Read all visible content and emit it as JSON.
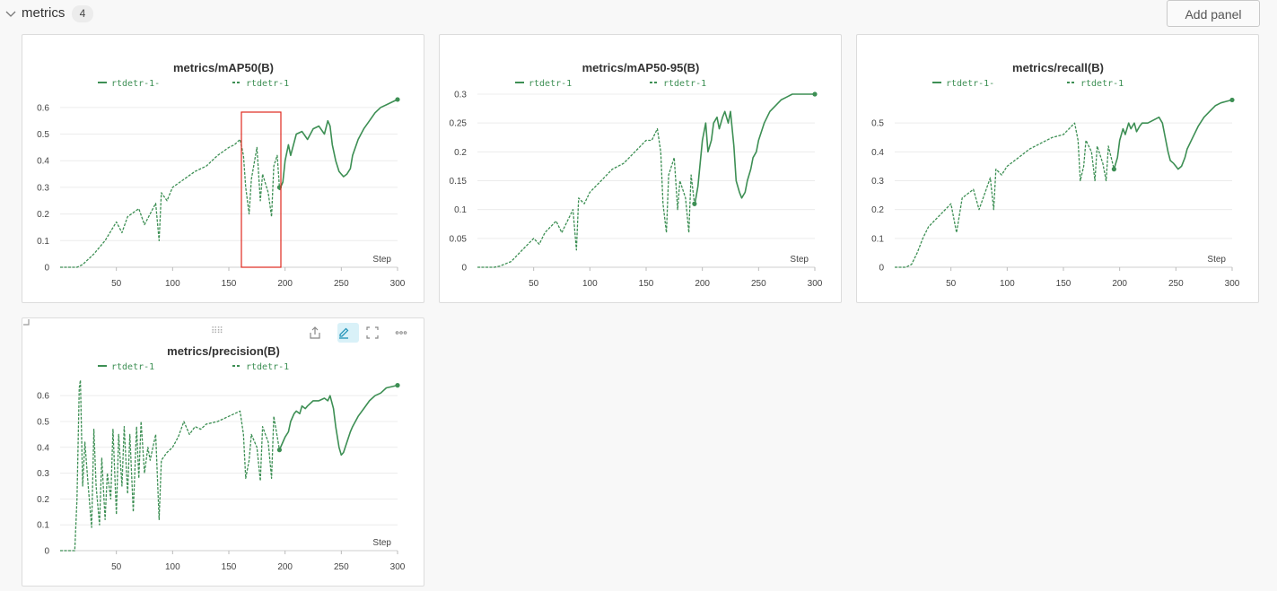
{
  "section": {
    "title": "metrics",
    "count": "4",
    "add_panel_label": "Add panel"
  },
  "colors": {
    "series": "#3d8f54",
    "highlight": "#e0291f",
    "grid": "#ececec"
  },
  "toolbar_icons": [
    "drag-handle-icon",
    "share-icon",
    "edit-icon",
    "fullscreen-icon",
    "more-icon"
  ],
  "chart_data": [
    {
      "type": "line",
      "title": "metrics/mAP50(B)",
      "xlabel": "Step",
      "xticks": [
        50,
        100,
        150,
        200,
        250,
        300
      ],
      "yticks": [
        0,
        0.1,
        0.2,
        0.3,
        0.4,
        0.5,
        0.6
      ],
      "ylim": [
        0,
        0.65
      ],
      "xlim": [
        0,
        300
      ],
      "legend": [
        "rtdetr-1-",
        "rtdetr-1"
      ],
      "series": [
        {
          "name": "rtdetr-1",
          "style": "dashed",
          "x": [
            0,
            15,
            20,
            30,
            40,
            50,
            55,
            60,
            70,
            75,
            85,
            88,
            90,
            95,
            100,
            110,
            120,
            130,
            140,
            150,
            155,
            160,
            163,
            165,
            168,
            170,
            175,
            178,
            180,
            185,
            188,
            190,
            193,
            195
          ],
          "y": [
            0,
            0,
            0.01,
            0.05,
            0.1,
            0.17,
            0.13,
            0.19,
            0.22,
            0.16,
            0.24,
            0.1,
            0.28,
            0.25,
            0.3,
            0.33,
            0.36,
            0.38,
            0.42,
            0.45,
            0.46,
            0.48,
            0.42,
            0.3,
            0.2,
            0.33,
            0.45,
            0.25,
            0.35,
            0.28,
            0.19,
            0.38,
            0.42,
            0.3
          ]
        },
        {
          "name": "rtdetr-1-",
          "style": "solid",
          "x": [
            195,
            198,
            200,
            203,
            205,
            210,
            215,
            220,
            225,
            230,
            235,
            238,
            240,
            242,
            245,
            248,
            250,
            252,
            255,
            258,
            260,
            265,
            270,
            275,
            280,
            285,
            290,
            295,
            300
          ],
          "y": [
            0.29,
            0.32,
            0.4,
            0.46,
            0.42,
            0.5,
            0.51,
            0.48,
            0.52,
            0.53,
            0.5,
            0.55,
            0.53,
            0.46,
            0.4,
            0.36,
            0.35,
            0.34,
            0.35,
            0.37,
            0.42,
            0.48,
            0.52,
            0.55,
            0.58,
            0.6,
            0.61,
            0.62,
            0.63
          ]
        }
      ]
    },
    {
      "type": "line",
      "title": "metrics/mAP50-95(B)",
      "xlabel": "Step",
      "xticks": [
        50,
        100,
        150,
        200,
        250,
        300
      ],
      "yticks": [
        0,
        0.05,
        0.1,
        0.15,
        0.2,
        0.25,
        0.3
      ],
      "ylim": [
        0,
        0.3
      ],
      "xlim": [
        0,
        300
      ],
      "legend": [
        "rtdetr-1",
        "rtdetr-1"
      ],
      "series": [
        {
          "name": "rtdetr-1",
          "style": "dashed",
          "x": [
            0,
            15,
            20,
            30,
            40,
            50,
            55,
            60,
            70,
            75,
            85,
            88,
            90,
            95,
            100,
            110,
            120,
            130,
            140,
            150,
            155,
            160,
            163,
            165,
            168,
            170,
            175,
            178,
            180,
            185,
            188,
            190,
            193
          ],
          "y": [
            0,
            0,
            0.002,
            0.01,
            0.03,
            0.05,
            0.04,
            0.06,
            0.08,
            0.06,
            0.1,
            0.03,
            0.12,
            0.11,
            0.13,
            0.15,
            0.17,
            0.18,
            0.2,
            0.22,
            0.22,
            0.24,
            0.2,
            0.11,
            0.06,
            0.16,
            0.19,
            0.1,
            0.15,
            0.12,
            0.06,
            0.16,
            0.11
          ]
        },
        {
          "name": "rtdetr-1",
          "style": "solid",
          "x": [
            193,
            196,
            200,
            203,
            205,
            208,
            210,
            213,
            215,
            218,
            220,
            223,
            225,
            228,
            230,
            233,
            235,
            238,
            240,
            243,
            245,
            248,
            250,
            255,
            260,
            265,
            270,
            275,
            280,
            285,
            290,
            295,
            300
          ],
          "y": [
            0.106,
            0.14,
            0.22,
            0.25,
            0.2,
            0.22,
            0.25,
            0.26,
            0.24,
            0.26,
            0.27,
            0.25,
            0.27,
            0.21,
            0.15,
            0.13,
            0.12,
            0.13,
            0.15,
            0.17,
            0.19,
            0.2,
            0.22,
            0.25,
            0.27,
            0.28,
            0.29,
            0.295,
            0.3,
            0.3,
            0.3,
            0.3,
            0.3
          ]
        }
      ]
    },
    {
      "type": "line",
      "title": "metrics/recall(B)",
      "xlabel": "Step",
      "xticks": [
        50,
        100,
        150,
        200,
        250,
        300
      ],
      "yticks": [
        0,
        0.1,
        0.2,
        0.3,
        0.4,
        0.5
      ],
      "ylim": [
        0,
        0.6
      ],
      "xlim": [
        0,
        300
      ],
      "legend": [
        "rtdetr-1-",
        "rtdetr-1"
      ],
      "series": [
        {
          "name": "rtdetr-1",
          "style": "dashed",
          "x": [
            0,
            10,
            15,
            20,
            25,
            30,
            40,
            50,
            55,
            60,
            70,
            75,
            85,
            88,
            90,
            95,
            100,
            110,
            120,
            130,
            140,
            150,
            155,
            160,
            163,
            165,
            168,
            170,
            175,
            178,
            180,
            185,
            188,
            190,
            195
          ],
          "y": [
            0,
            0,
            0.01,
            0.05,
            0.1,
            0.14,
            0.18,
            0.22,
            0.12,
            0.24,
            0.27,
            0.2,
            0.31,
            0.2,
            0.34,
            0.32,
            0.35,
            0.38,
            0.41,
            0.43,
            0.45,
            0.46,
            0.48,
            0.5,
            0.44,
            0.3,
            0.35,
            0.44,
            0.4,
            0.3,
            0.42,
            0.36,
            0.3,
            0.42,
            0.34
          ]
        },
        {
          "name": "rtdetr-1-",
          "style": "solid",
          "x": [
            195,
            198,
            200,
            203,
            205,
            208,
            210,
            213,
            215,
            218,
            220,
            225,
            230,
            235,
            238,
            240,
            243,
            245,
            248,
            250,
            252,
            255,
            258,
            260,
            265,
            270,
            275,
            280,
            285,
            290,
            295,
            300
          ],
          "y": [
            0.34,
            0.38,
            0.44,
            0.48,
            0.46,
            0.5,
            0.48,
            0.5,
            0.47,
            0.49,
            0.5,
            0.5,
            0.51,
            0.52,
            0.5,
            0.46,
            0.4,
            0.37,
            0.36,
            0.35,
            0.34,
            0.35,
            0.38,
            0.41,
            0.45,
            0.49,
            0.52,
            0.54,
            0.56,
            0.57,
            0.575,
            0.58
          ]
        }
      ]
    },
    {
      "type": "line",
      "title": "metrics/precision(B)",
      "xlabel": "Step",
      "xticks": [
        50,
        100,
        150,
        200,
        250,
        300
      ],
      "yticks": [
        0,
        0.1,
        0.2,
        0.3,
        0.4,
        0.5,
        0.6
      ],
      "ylim": [
        0,
        0.67
      ],
      "xlim": [
        0,
        300
      ],
      "legend": [
        "rtdetr-1",
        "rtdetr-1"
      ],
      "series": [
        {
          "name": "rtdetr-1",
          "style": "dashed",
          "x": [
            0,
            13,
            15,
            17,
            18,
            20,
            22,
            25,
            28,
            30,
            32,
            35,
            37,
            40,
            42,
            45,
            47,
            50,
            52,
            55,
            57,
            60,
            62,
            65,
            68,
            70,
            72,
            75,
            78,
            80,
            85,
            88,
            90,
            95,
            100,
            105,
            110,
            115,
            120,
            125,
            130,
            140,
            150,
            155,
            160,
            163,
            165,
            168,
            170,
            175,
            178,
            180,
            185,
            188,
            190,
            195
          ],
          "y": [
            0,
            0,
            0.2,
            0.63,
            0.66,
            0.25,
            0.42,
            0.25,
            0.09,
            0.47,
            0.25,
            0.1,
            0.36,
            0.12,
            0.3,
            0.2,
            0.47,
            0.14,
            0.45,
            0.25,
            0.48,
            0.22,
            0.45,
            0.15,
            0.48,
            0.28,
            0.5,
            0.3,
            0.4,
            0.35,
            0.45,
            0.12,
            0.35,
            0.38,
            0.4,
            0.44,
            0.5,
            0.45,
            0.48,
            0.47,
            0.49,
            0.5,
            0.52,
            0.53,
            0.54,
            0.45,
            0.28,
            0.35,
            0.45,
            0.4,
            0.27,
            0.48,
            0.42,
            0.28,
            0.52,
            0.39
          ]
        },
        {
          "name": "rtdetr-1",
          "style": "solid",
          "x": [
            195,
            198,
            200,
            203,
            205,
            208,
            210,
            213,
            215,
            218,
            220,
            225,
            230,
            235,
            238,
            240,
            243,
            245,
            248,
            250,
            252,
            255,
            258,
            260,
            265,
            270,
            275,
            280,
            285,
            290,
            295,
            300
          ],
          "y": [
            0.39,
            0.42,
            0.44,
            0.46,
            0.5,
            0.53,
            0.54,
            0.53,
            0.56,
            0.55,
            0.56,
            0.58,
            0.58,
            0.59,
            0.58,
            0.6,
            0.55,
            0.48,
            0.4,
            0.37,
            0.38,
            0.42,
            0.46,
            0.48,
            0.52,
            0.55,
            0.58,
            0.6,
            0.61,
            0.63,
            0.635,
            0.64
          ]
        }
      ]
    }
  ]
}
